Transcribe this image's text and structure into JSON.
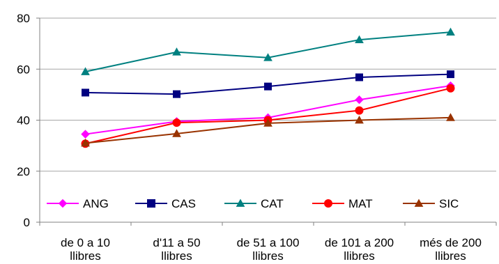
{
  "chart_data": {
    "type": "line",
    "title": "",
    "xlabel": "",
    "ylabel": "",
    "ylim": [
      0,
      80
    ],
    "y_ticks": [
      0,
      20,
      40,
      60,
      80
    ],
    "grid": true,
    "legend_position": "bottom-inside",
    "categories": [
      [
        "de 0 a 10",
        "llibres"
      ],
      [
        "d'11 a 50",
        "llibres"
      ],
      [
        "de 51 a 100",
        "llibres"
      ],
      [
        "de 101 a 200",
        "llibres"
      ],
      [
        "més de 200",
        "llibres"
      ]
    ],
    "series": [
      {
        "name": "ANG",
        "color": "#ff00ff",
        "marker": "diamond",
        "values": [
          34.5,
          39.5,
          41.0,
          48.0,
          53.5
        ]
      },
      {
        "name": "CAS",
        "color": "#000080",
        "marker": "square",
        "values": [
          50.8,
          50.2,
          53.2,
          56.8,
          58.0
        ]
      },
      {
        "name": "CAT",
        "color": "#008080",
        "marker": "triangle",
        "values": [
          59.0,
          66.7,
          64.5,
          71.5,
          74.5
        ]
      },
      {
        "name": "MAT",
        "color": "#ff0000",
        "marker": "circle",
        "values": [
          30.8,
          39.0,
          40.0,
          43.8,
          52.5
        ]
      },
      {
        "name": "SIC",
        "color": "#993300",
        "marker": "triangle",
        "values": [
          31.0,
          34.7,
          38.8,
          40.0,
          41.0
        ]
      }
    ]
  }
}
